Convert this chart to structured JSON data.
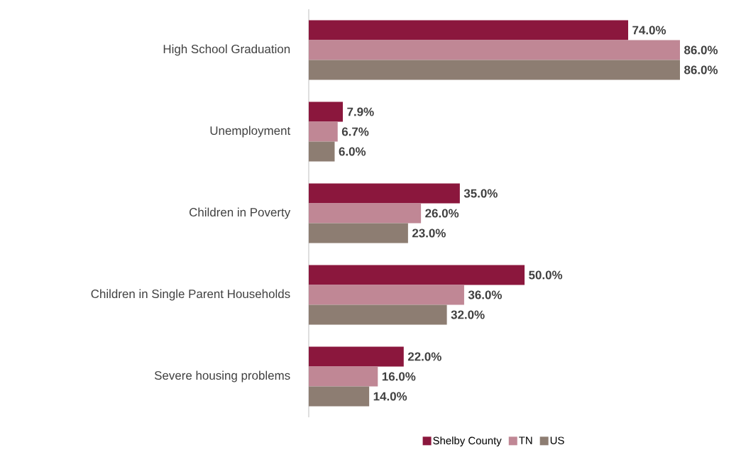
{
  "chart_data": {
    "type": "bar",
    "orientation": "horizontal",
    "legend": "bottom",
    "categories": [
      "High School Graduation",
      "Unemployment",
      "Children in Poverty",
      "Children in Single Parent Households",
      "Severe housing problems"
    ],
    "series": [
      {
        "name": "Shelby County",
        "color": "#8b173d",
        "values": [
          74.0,
          7.9,
          35.0,
          50.0,
          22.0
        ],
        "value_labels": [
          "74.0%",
          "7.9%",
          "35.0%",
          "50.0%",
          "22.0%"
        ]
      },
      {
        "name": "TN",
        "color": "#c08795",
        "values": [
          86.0,
          6.7,
          26.0,
          36.0,
          16.0
        ],
        "value_labels": [
          "86.0%",
          "6.7%",
          "26.0%",
          "36.0%",
          "16.0%"
        ]
      },
      {
        "name": "US",
        "color": "#8d7d72",
        "values": [
          86.0,
          6.0,
          23.0,
          32.0,
          14.0
        ],
        "value_labels": [
          "86.0%",
          "6.0%",
          "23.0%",
          "32.0%",
          "14.0%"
        ]
      }
    ]
  }
}
